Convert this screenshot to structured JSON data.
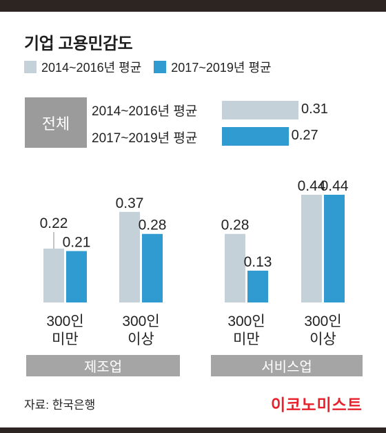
{
  "header": {
    "title": "기업 고용민감도"
  },
  "legend": {
    "items": [
      {
        "label": "2014~2016년 평균",
        "color": "#c5d1d9"
      },
      {
        "label": "2017~2019년 평균",
        "color": "#2f9bd0"
      }
    ]
  },
  "chart_data": {
    "type": "bar",
    "title": "기업 고용민감도",
    "overall": {
      "label": "전체",
      "rows": [
        {
          "name": "2014~2016년 평균",
          "value": 0.31,
          "value_label": "0.31"
        },
        {
          "name": "2017~2019년 평균",
          "value": 0.27,
          "value_label": "0.27"
        }
      ]
    },
    "groups": [
      {
        "name": "제조업",
        "categories": [
          {
            "line1": "300인",
            "line2": "미만",
            "values": [
              0.22,
              0.21
            ],
            "labels": [
              "0.22",
              "0.21"
            ]
          },
          {
            "line1": "300인",
            "line2": "이상",
            "values": [
              0.37,
              0.28
            ],
            "labels": [
              "0.37",
              "0.28"
            ]
          }
        ]
      },
      {
        "name": "서비스업",
        "categories": [
          {
            "line1": "300인",
            "line2": "미만",
            "values": [
              0.28,
              0.13
            ],
            "labels": [
              "0.28",
              "0.13"
            ]
          },
          {
            "line1": "300인",
            "line2": "이상",
            "values": [
              0.44,
              0.44
            ],
            "labels": [
              "0.44",
              "0.44"
            ]
          }
        ]
      }
    ],
    "series": [
      {
        "name": "2014~2016년 평균",
        "color": "#c5d1d9"
      },
      {
        "name": "2017~2019년 평균",
        "color": "#2f9bd0"
      }
    ],
    "ylim": [
      0,
      0.44
    ]
  },
  "footer": {
    "source": "자료: 한국은행",
    "brand": "이코노미스트"
  }
}
